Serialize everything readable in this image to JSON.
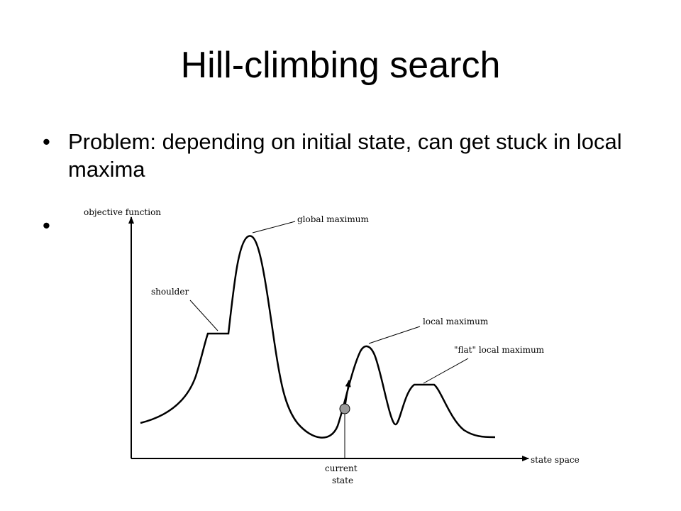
{
  "slide": {
    "title": "Hill-climbing search",
    "bullets": [
      {
        "symbol": "•",
        "text": "Problem: depending on initial state, can get stuck in local maxima"
      },
      {
        "symbol": "•",
        "text": ""
      }
    ]
  },
  "diagram": {
    "y_axis_label": "objective function",
    "x_axis_label": "state space",
    "annotations": {
      "global_maximum": "global maximum",
      "shoulder": "shoulder",
      "local_maximum": "local maximum",
      "flat_local_maximum": "\"flat\" local maximum",
      "current_state_line1": "current",
      "current_state_line2": "state"
    }
  }
}
